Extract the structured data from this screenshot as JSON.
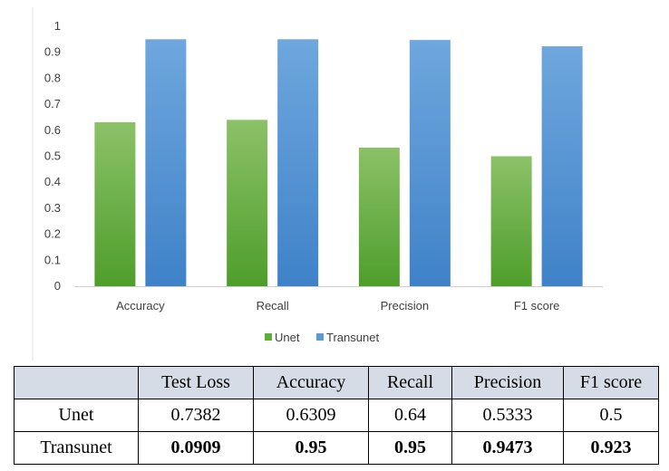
{
  "chart_data": {
    "type": "bar",
    "categories": [
      "Accuracy",
      "Recall",
      "Precision",
      "F1 score"
    ],
    "series": [
      {
        "name": "Unet",
        "values": [
          0.6309,
          0.64,
          0.5333,
          0.5
        ],
        "color": "#5fae3a"
      },
      {
        "name": "Transunet",
        "values": [
          0.95,
          0.95,
          0.9473,
          0.923
        ],
        "color": "#5b9bd5"
      }
    ],
    "ylim": [
      0,
      1
    ],
    "yticks": [
      "0",
      "0.1",
      "0.2",
      "0.3",
      "0.4",
      "0.5",
      "0.6",
      "0.7",
      "0.8",
      "0.9",
      "1"
    ],
    "grid": false,
    "legend": "bottom"
  },
  "table": {
    "headers": [
      "Test Loss",
      "Accuracy",
      "Recall",
      "Precision",
      "F1 score"
    ],
    "rows": [
      {
        "name": "Unet",
        "values": [
          "0.7382",
          "0.6309",
          "0.64",
          "0.5333",
          "0.5"
        ]
      },
      {
        "name": "Transunet",
        "values": [
          "0.0909",
          "0.95",
          "0.95",
          "0.9473",
          "0.923"
        ]
      }
    ]
  }
}
